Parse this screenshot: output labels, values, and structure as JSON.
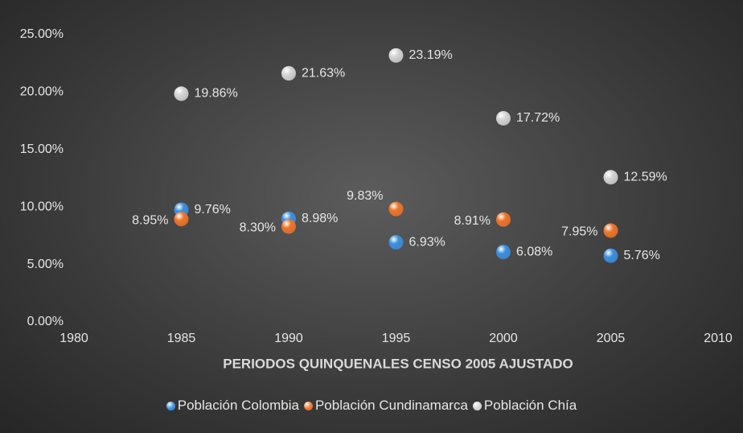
{
  "chart_data": {
    "type": "scatter",
    "x_label": "PERIODOS QUINQUENALES CENSO 2005 AJUSTADO",
    "xlim": [
      1980,
      2010
    ],
    "xticks": [
      1980,
      1985,
      1990,
      1995,
      2000,
      2005,
      2010
    ],
    "ylim": [
      0,
      25
    ],
    "yticks": [
      {
        "value": 0,
        "label": "0.00%"
      },
      {
        "value": 5,
        "label": "5.00%"
      },
      {
        "value": 10,
        "label": "10.00%"
      },
      {
        "value": 15,
        "label": "15.00%"
      },
      {
        "value": 20,
        "label": "20.00%"
      },
      {
        "value": 25,
        "label": "25.00%"
      }
    ],
    "grid": false,
    "legend": "bottom",
    "x": [
      1985,
      1990,
      1995,
      2000,
      2005
    ],
    "series": [
      {
        "name": "Población Colombia",
        "color": "#3b8fe0",
        "values": [
          9.76,
          8.98,
          6.93,
          6.08,
          5.76
        ],
        "value_labels": [
          "9.76%",
          "8.98%",
          "6.93%",
          "6.08%",
          "5.76%"
        ]
      },
      {
        "name": "Población Cundinamarca",
        "color": "#ee7428",
        "values": [
          8.95,
          8.3,
          9.83,
          8.91,
          7.95
        ],
        "value_labels": [
          "8.95%",
          "8.30%",
          "9.83%",
          "8.91%",
          "7.95%"
        ]
      },
      {
        "name": "Población Chía",
        "color": "#d4d4d4",
        "values": [
          19.86,
          21.63,
          23.19,
          17.72,
          12.59
        ],
        "value_labels": [
          "19.86%",
          "21.63%",
          "23.19%",
          "17.72%",
          "12.59%"
        ]
      }
    ]
  }
}
